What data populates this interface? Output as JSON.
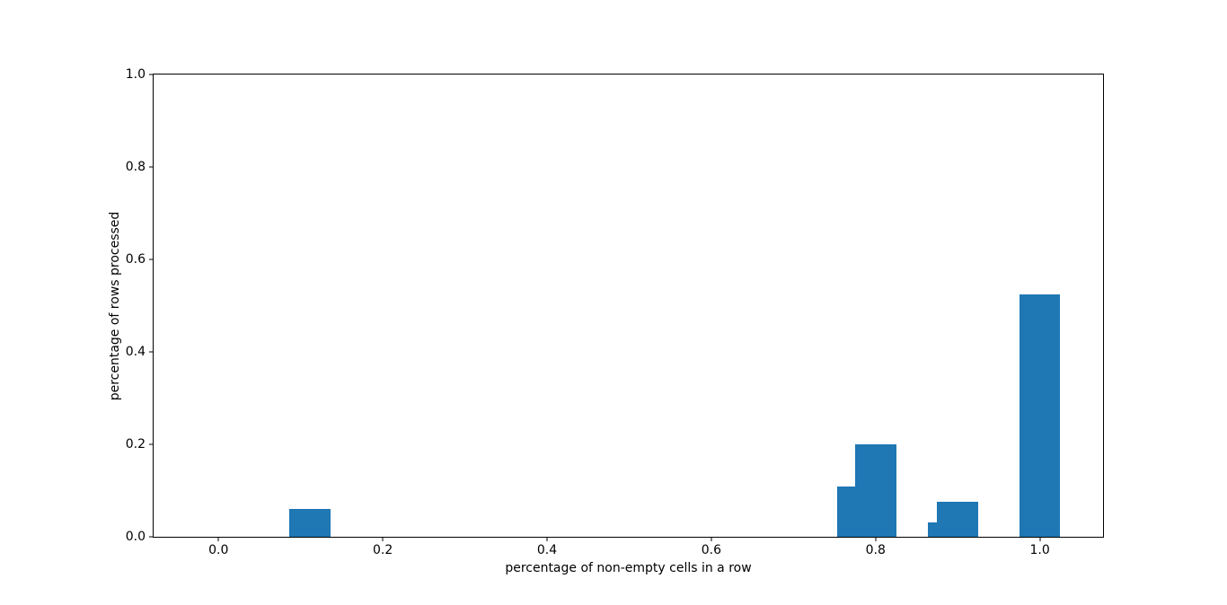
{
  "figure": {
    "background": "#ffffff",
    "spine_color": "#000000",
    "text_color": "#000000"
  },
  "chart_data": {
    "type": "bar",
    "title": "",
    "xlabel": "percentage of non-empty cells in a row",
    "ylabel": "percentage of rows processed",
    "bar_color": "#1f77b4",
    "bar_width": 0.05,
    "bars": [
      {
        "x": 0.111,
        "height": 0.061
      },
      {
        "x": 0.778,
        "height": 0.109
      },
      {
        "x": 0.8,
        "height": 0.201
      },
      {
        "x": 0.889,
        "height": 0.031
      },
      {
        "x": 0.9,
        "height": 0.076
      },
      {
        "x": 1.0,
        "height": 0.525
      }
    ],
    "xticks": [
      {
        "value": 0.0,
        "label": "0.0"
      },
      {
        "value": 0.2,
        "label": "0.2"
      },
      {
        "value": 0.4,
        "label": "0.4"
      },
      {
        "value": 0.6,
        "label": "0.6"
      },
      {
        "value": 0.8,
        "label": "0.8"
      },
      {
        "value": 1.0,
        "label": "1.0"
      }
    ],
    "yticks": [
      {
        "value": 0.0,
        "label": "0.0"
      },
      {
        "value": 0.2,
        "label": "0.2"
      },
      {
        "value": 0.4,
        "label": "0.4"
      },
      {
        "value": 0.6,
        "label": "0.6"
      },
      {
        "value": 0.8,
        "label": "0.8"
      },
      {
        "value": 1.0,
        "label": "1.0"
      }
    ],
    "xlim": [
      -0.079,
      1.077
    ],
    "ylim": [
      0,
      1
    ],
    "grid": false,
    "legend_position": null
  }
}
